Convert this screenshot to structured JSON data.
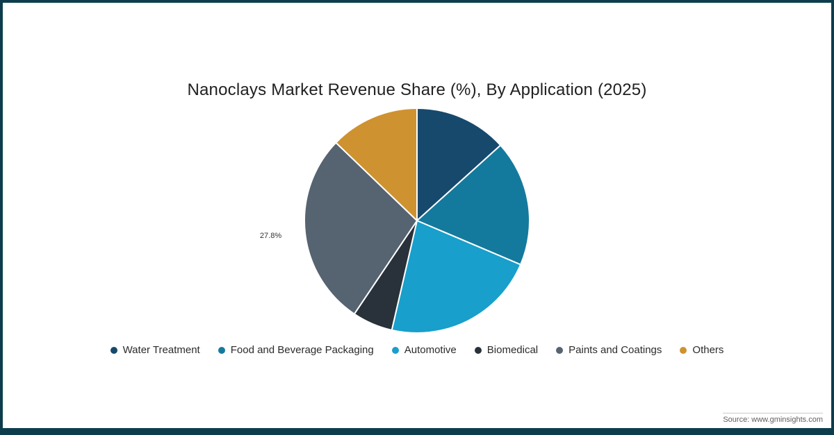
{
  "page": {
    "background": "#ffffff",
    "border_color": "#0d3d4d"
  },
  "chart_data": {
    "type": "pie",
    "title": "Nanoclays Market Revenue Share (%), By Application (2025)",
    "legend_position": "bottom",
    "start_angle_deg": 0,
    "direction": "clockwise",
    "slices": [
      {
        "label": "Water Treatment",
        "value": 13.3,
        "color": "#17496d"
      },
      {
        "label": "Food and Beverage Packaging",
        "value": 18.1,
        "color": "#147a9d"
      },
      {
        "label": "Automotive",
        "value": 22.2,
        "color": "#189fcb"
      },
      {
        "label": "Biomedical",
        "value": 5.8,
        "color": "#29323b"
      },
      {
        "label": "Paints and Coatings",
        "value": 27.8,
        "color": "#566370",
        "data_label": "27.8%"
      },
      {
        "label": "Others",
        "value": 12.8,
        "color": "#cf9230"
      }
    ],
    "annotations": [
      {
        "text": "27.8%",
        "target": "Paints and Coatings"
      }
    ]
  },
  "source": {
    "text": "Source: www.gminsights.com"
  }
}
